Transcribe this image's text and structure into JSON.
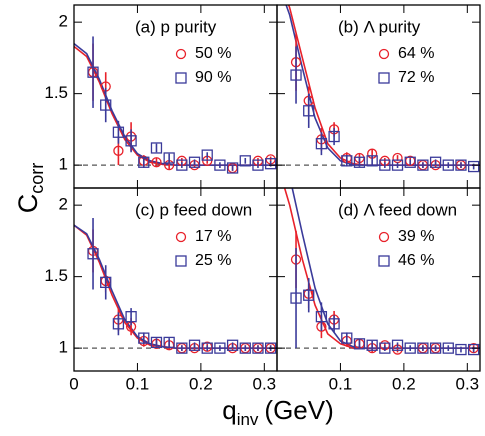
{
  "axes": {
    "ylabel": "C",
    "ylabel_sub": "corr",
    "xlabel": "q",
    "xlabel_sub": "inv",
    "xlabel_unit": "(GeV)"
  },
  "chart_data": [
    {
      "type": "scatter",
      "label": "(a) p purity",
      "xlim": [
        0,
        0.32
      ],
      "ylim": [
        0.84,
        2.12
      ],
      "xticks": [
        0,
        0.1,
        0.2,
        0.3
      ],
      "yticks": [
        1,
        1.5,
        2
      ],
      "show_xticklabels": false,
      "show_yticklabels": true,
      "reference_line": 1,
      "series": [
        {
          "name": "50 %",
          "color": "#e8212a",
          "marker": "circle",
          "x": [
            0.03,
            0.05,
            0.07,
            0.09,
            0.11,
            0.13,
            0.15,
            0.17,
            0.19,
            0.21,
            0.25,
            0.29,
            0.31
          ],
          "values": [
            1.65,
            1.55,
            1.1,
            1.2,
            1.03,
            1.02,
            1.0,
            1.03,
            1.0,
            1.03,
            0.98,
            1.03,
            1.04
          ],
          "errors": [
            0.2,
            0.1,
            0.1,
            0.1,
            0.04,
            0.03,
            0.03,
            0.02,
            0.02,
            0.02,
            0.02,
            0.02,
            0.02
          ]
        },
        {
          "name": "90 %",
          "color": "#3a3a9a",
          "marker": "square",
          "x": [
            0.03,
            0.05,
            0.07,
            0.09,
            0.11,
            0.13,
            0.15,
            0.17,
            0.19,
            0.21,
            0.23,
            0.25,
            0.27,
            0.29,
            0.31
          ],
          "values": [
            1.65,
            1.42,
            1.23,
            1.17,
            1.02,
            1.12,
            1.05,
            1.0,
            1.02,
            1.07,
            1.0,
            0.98,
            1.03,
            1.0,
            1.01
          ],
          "errors": [
            0.25,
            0.12,
            0.08,
            0.08,
            0.04,
            0.03,
            0.03,
            0.02,
            0.02,
            0.02,
            0.02,
            0.02,
            0.02,
            0.02,
            0.02
          ]
        }
      ],
      "fits": [
        {
          "color": "#e8212a",
          "x": [
            0,
            0.02,
            0.04,
            0.06,
            0.08,
            0.1,
            0.12,
            0.14,
            0.16,
            0.2,
            0.32
          ],
          "values": [
            1.83,
            1.76,
            1.58,
            1.36,
            1.18,
            1.07,
            1.02,
            1.005,
            1.0,
            1.0,
            1.0
          ]
        },
        {
          "color": "#3a3a9a",
          "x": [
            0,
            0.02,
            0.04,
            0.06,
            0.08,
            0.1,
            0.12,
            0.14,
            0.16,
            0.2,
            0.32
          ],
          "values": [
            1.85,
            1.78,
            1.6,
            1.38,
            1.2,
            1.08,
            1.03,
            1.01,
            1.0,
            1.0,
            1.0
          ]
        }
      ]
    },
    {
      "type": "scatter",
      "label": "(b) Λ purity",
      "xlim": [
        0,
        0.32
      ],
      "ylim": [
        0.84,
        2.12
      ],
      "xticks": [
        0,
        0.1,
        0.2,
        0.3
      ],
      "yticks": [
        1,
        1.5,
        2
      ],
      "show_xticklabels": false,
      "show_yticklabels": false,
      "reference_line": 1,
      "series": [
        {
          "name": "64 %",
          "color": "#e8212a",
          "marker": "circle",
          "x": [
            0.03,
            0.05,
            0.07,
            0.09,
            0.11,
            0.13,
            0.15,
            0.17,
            0.19,
            0.21,
            0.23,
            0.25,
            0.29
          ],
          "values": [
            1.72,
            1.45,
            1.18,
            1.25,
            1.05,
            1.05,
            1.08,
            1.03,
            1.05,
            1.03,
            1.0,
            1.0,
            1.0
          ],
          "errors": [
            0.2,
            0.1,
            0.08,
            0.05,
            0.04,
            0.03,
            0.03,
            0.02,
            0.02,
            0.02,
            0.02,
            0.02,
            0.02
          ]
        },
        {
          "name": "72 %",
          "color": "#3a3a9a",
          "marker": "square",
          "x": [
            0.03,
            0.05,
            0.07,
            0.09,
            0.11,
            0.13,
            0.15,
            0.17,
            0.19,
            0.21,
            0.23,
            0.25,
            0.27,
            0.29,
            0.31
          ],
          "values": [
            1.63,
            1.38,
            1.15,
            1.2,
            1.03,
            1.02,
            1.03,
            1.0,
            1.0,
            1.02,
            1.0,
            1.02,
            1.0,
            1.0,
            0.99
          ],
          "errors": [
            0.2,
            0.12,
            0.08,
            0.06,
            0.04,
            0.03,
            0.03,
            0.02,
            0.02,
            0.02,
            0.02,
            0.02,
            0.02,
            0.02,
            0.02
          ]
        }
      ],
      "fits": [
        {
          "color": "#e8212a",
          "x": [
            0,
            0.02,
            0.04,
            0.06,
            0.08,
            0.1,
            0.12,
            0.14,
            0.16,
            0.2,
            0.32
          ],
          "values": [
            2.35,
            2.1,
            1.75,
            1.4,
            1.15,
            1.05,
            1.01,
            1.0,
            1.0,
            1.0,
            1.0
          ]
        },
        {
          "color": "#3a3a9a",
          "x": [
            0,
            0.02,
            0.04,
            0.06,
            0.08,
            0.1,
            0.12,
            0.14,
            0.16,
            0.2,
            0.32
          ],
          "values": [
            2.3,
            2.05,
            1.68,
            1.33,
            1.12,
            1.03,
            1.0,
            1.0,
            1.0,
            1.0,
            1.0
          ]
        }
      ]
    },
    {
      "type": "scatter",
      "label": "(c) p feed down",
      "xlim": [
        0,
        0.32
      ],
      "ylim": [
        0.84,
        2.12
      ],
      "xticks": [
        0,
        0.1,
        0.2,
        0.3
      ],
      "yticks": [
        1,
        1.5,
        2
      ],
      "show_xticklabels": true,
      "show_yticklabels": true,
      "reference_line": 1,
      "series": [
        {
          "name": "17 %",
          "color": "#e8212a",
          "marker": "circle",
          "x": [
            0.03,
            0.05,
            0.07,
            0.09,
            0.11,
            0.13,
            0.15,
            0.17,
            0.19,
            0.21,
            0.25,
            0.27,
            0.29,
            0.31
          ],
          "values": [
            1.68,
            1.47,
            1.2,
            1.15,
            1.05,
            1.03,
            1.02,
            1.0,
            1.0,
            1.01,
            1.0,
            1.0,
            1.0,
            1.0
          ],
          "errors": [
            0.15,
            0.08,
            0.08,
            0.06,
            0.04,
            0.03,
            0.03,
            0.02,
            0.02,
            0.02,
            0.02,
            0.02,
            0.02,
            0.02
          ]
        },
        {
          "name": "25 %",
          "color": "#3a3a9a",
          "marker": "square",
          "x": [
            0.03,
            0.05,
            0.07,
            0.09,
            0.11,
            0.13,
            0.15,
            0.17,
            0.19,
            0.21,
            0.23,
            0.25,
            0.27,
            0.29,
            0.31
          ],
          "values": [
            1.66,
            1.46,
            1.17,
            1.22,
            1.07,
            1.04,
            1.04,
            1.0,
            1.02,
            1.0,
            1.0,
            1.02,
            1.0,
            1.0,
            1.0
          ],
          "errors": [
            0.25,
            0.12,
            0.08,
            0.06,
            0.04,
            0.03,
            0.03,
            0.02,
            0.02,
            0.02,
            0.02,
            0.02,
            0.02,
            0.02,
            0.02
          ]
        }
      ],
      "fits": [
        {
          "color": "#e8212a",
          "x": [
            0,
            0.02,
            0.04,
            0.06,
            0.08,
            0.1,
            0.12,
            0.14,
            0.16,
            0.2,
            0.32
          ],
          "values": [
            1.86,
            1.79,
            1.6,
            1.37,
            1.18,
            1.07,
            1.02,
            1.01,
            1.0,
            1.0,
            1.0
          ]
        },
        {
          "color": "#3a3a9a",
          "x": [
            0,
            0.02,
            0.04,
            0.06,
            0.08,
            0.1,
            0.12,
            0.14,
            0.16,
            0.2,
            0.32
          ],
          "values": [
            1.86,
            1.8,
            1.62,
            1.4,
            1.2,
            1.08,
            1.03,
            1.01,
            1.0,
            1.0,
            1.0
          ]
        }
      ]
    },
    {
      "type": "scatter",
      "label": "(d) Λ feed down",
      "xlim": [
        0,
        0.32
      ],
      "ylim": [
        0.84,
        2.12
      ],
      "xticks": [
        0.1,
        0.2,
        0.3
      ],
      "yticks": [
        1,
        1.5,
        2
      ],
      "show_xticklabels": true,
      "show_yticklabels": false,
      "reference_line": 1,
      "series": [
        {
          "name": "39 %",
          "color": "#e8212a",
          "marker": "circle",
          "x": [
            0.03,
            0.05,
            0.07,
            0.09,
            0.11,
            0.13,
            0.15,
            0.17,
            0.19,
            0.23,
            0.25,
            0.31
          ],
          "values": [
            1.62,
            1.38,
            1.15,
            1.2,
            1.05,
            1.03,
            1.0,
            1.02,
            0.99,
            1.0,
            1.0,
            1.0
          ],
          "errors": [
            0.2,
            0.1,
            0.08,
            0.06,
            0.04,
            0.03,
            0.03,
            0.02,
            0.02,
            0.02,
            0.02,
            0.02
          ]
        },
        {
          "name": "46 %",
          "color": "#3a3a9a",
          "marker": "square",
          "x": [
            0.03,
            0.05,
            0.07,
            0.09,
            0.11,
            0.13,
            0.15,
            0.17,
            0.19,
            0.21,
            0.23,
            0.25,
            0.27,
            0.29,
            0.31
          ],
          "values": [
            1.35,
            1.37,
            1.22,
            1.17,
            1.07,
            1.03,
            1.02,
            1.0,
            1.02,
            1.0,
            1.0,
            1.0,
            1.0,
            0.99,
            0.99
          ],
          "errors": [
            0.35,
            0.12,
            0.1,
            0.06,
            0.04,
            0.03,
            0.03,
            0.02,
            0.02,
            0.02,
            0.02,
            0.02,
            0.02,
            0.02,
            0.02
          ]
        }
      ],
      "fits": [
        {
          "color": "#e8212a",
          "x": [
            0,
            0.02,
            0.04,
            0.06,
            0.08,
            0.1,
            0.12,
            0.14,
            0.16,
            0.2,
            0.32
          ],
          "values": [
            2.3,
            2.0,
            1.62,
            1.3,
            1.1,
            1.03,
            1.0,
            1.0,
            1.0,
            1.0,
            1.0
          ]
        },
        {
          "color": "#3a3a9a",
          "x": [
            0,
            0.02,
            0.04,
            0.06,
            0.08,
            0.1,
            0.12,
            0.14,
            0.16,
            0.2,
            0.32
          ],
          "values": [
            2.45,
            2.2,
            1.8,
            1.42,
            1.17,
            1.05,
            1.01,
            1.0,
            1.0,
            1.0,
            1.0
          ]
        }
      ]
    }
  ]
}
